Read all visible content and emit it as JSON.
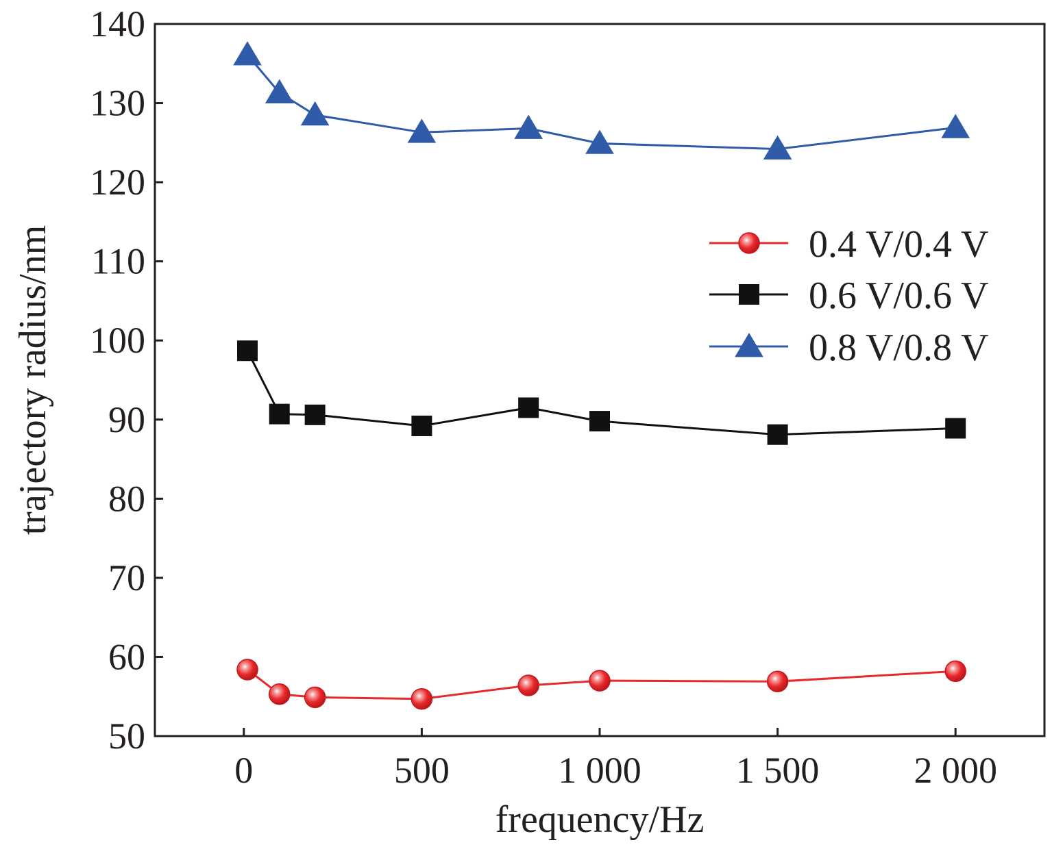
{
  "chart_data": {
    "type": "line",
    "title": "",
    "xlabel": "frequency/Hz",
    "ylabel": "trajectory radius/nm",
    "xlim": [
      -250,
      2250
    ],
    "ylim": [
      50,
      140
    ],
    "xticks": [
      {
        "value": 0,
        "label": "0"
      },
      {
        "value": 500,
        "label": "500"
      },
      {
        "value": 1000,
        "label": "1 000"
      },
      {
        "value": 1500,
        "label": "1 500"
      },
      {
        "value": 2000,
        "label": "2 000"
      }
    ],
    "yticks": [
      {
        "value": 50,
        "label": "50"
      },
      {
        "value": 60,
        "label": "60"
      },
      {
        "value": 70,
        "label": "70"
      },
      {
        "value": 80,
        "label": "80"
      },
      {
        "value": 90,
        "label": "90"
      },
      {
        "value": 100,
        "label": "100"
      },
      {
        "value": 110,
        "label": "110"
      },
      {
        "value": 120,
        "label": "120"
      },
      {
        "value": 130,
        "label": "130"
      },
      {
        "value": 140,
        "label": "140"
      }
    ],
    "grid": false,
    "legend_position": "right",
    "series": [
      {
        "name": "0.4 V/0.4 V",
        "color": "#e8292c",
        "marker": "circle",
        "x": [
          10,
          100,
          200,
          500,
          800,
          1000,
          1500,
          2000
        ],
        "y": [
          58.4,
          55.3,
          54.9,
          54.7,
          56.4,
          57.0,
          56.9,
          58.2
        ]
      },
      {
        "name": "0.6 V/0.6 V",
        "color": "#111111",
        "marker": "square",
        "x": [
          10,
          100,
          200,
          500,
          800,
          1000,
          1500,
          2000
        ],
        "y": [
          98.7,
          90.7,
          90.6,
          89.2,
          91.5,
          89.8,
          88.1,
          88.9
        ]
      },
      {
        "name": "0.8 V/0.8 V",
        "color": "#2f5ba8",
        "marker": "triangle",
        "x": [
          10,
          100,
          200,
          500,
          800,
          1000,
          1500,
          2000
        ],
        "y": [
          136.1,
          131.3,
          128.5,
          126.3,
          126.8,
          124.9,
          124.2,
          126.9
        ]
      }
    ]
  }
}
